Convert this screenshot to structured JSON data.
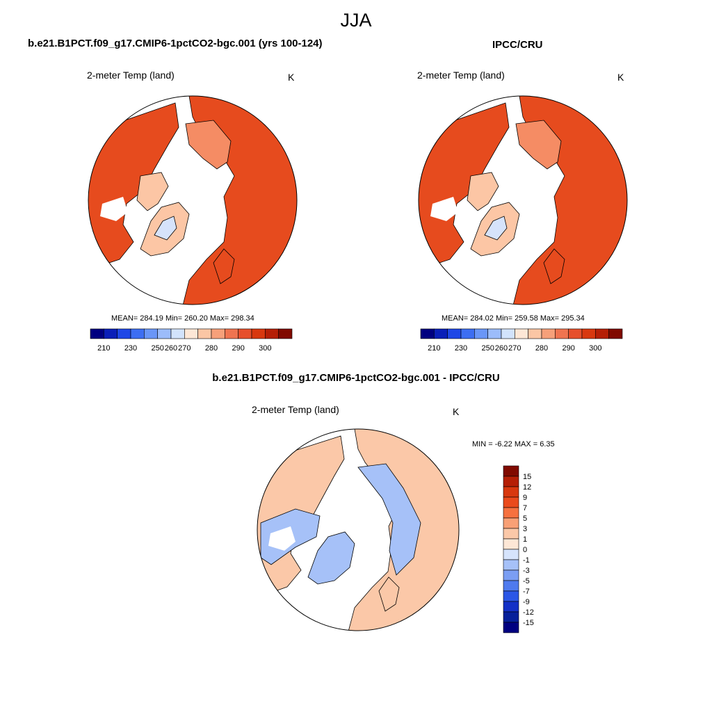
{
  "season_title": "JJA",
  "panels": [
    {
      "title": "b.e21.B1PCT.f09_g17.CMIP6-1pctCO2-bgc.001 (yrs 100-124)",
      "variable": "2-meter Temp (land)",
      "units": "K",
      "stats": "MEAN= 284.19  Min= 260.20  Max= 298.34",
      "colorbar_labels": [
        "210",
        "230",
        "250",
        "260",
        "270",
        "280",
        "290",
        "300"
      ]
    },
    {
      "title": "IPCC/CRU",
      "variable": "2-meter Temp (land)",
      "units": "K",
      "stats": "MEAN= 284.02  Min= 259.58  Max= 295.34",
      "colorbar_labels": [
        "210",
        "230",
        "250",
        "260",
        "270",
        "280",
        "290",
        "300"
      ]
    }
  ],
  "diff_panel": {
    "title": "b.e21.B1PCT.f09_g17.CMIP6-1pctCO2-bgc.001 - IPCC/CRU",
    "variable": "2-meter Temp (land)",
    "units": "K",
    "minmax": "MIN =  -6.22 MAX =   6.35",
    "colorbar_labels": [
      "15",
      "12",
      "9",
      "7",
      "5",
      "3",
      "1",
      "0",
      "-1",
      "-3",
      "-5",
      "-7",
      "-9",
      "-12",
      "-15"
    ]
  },
  "colors": {
    "abs_scale": [
      "#000080",
      "#0a1fb8",
      "#1f47e6",
      "#3d6ef2",
      "#6a96f7",
      "#9cbcfa",
      "#d2e3fc",
      "#fde7d6",
      "#fbc6a5",
      "#f6a07a",
      "#ef7450",
      "#e6502c",
      "#d8380f",
      "#b51f06",
      "#800a00"
    ],
    "diff_scale": [
      "#800a00",
      "#b51f06",
      "#d8380f",
      "#ea4a1c",
      "#f6713f",
      "#f8a076",
      "#fbc8a8",
      "#fde7d6",
      "#d6e4fc",
      "#a6c1f8",
      "#7b9ef3",
      "#4f7aee",
      "#2b56e6",
      "#1330c6",
      "#06209a",
      "#000080"
    ],
    "land_warm": "#e64b1e",
    "land_mid": "#f58c64",
    "land_cool": "#fcc6a5",
    "land_ice": "#d6e3fb",
    "diff_pos": "#fbc8a8",
    "diff_neg": "#a6c1f8"
  }
}
